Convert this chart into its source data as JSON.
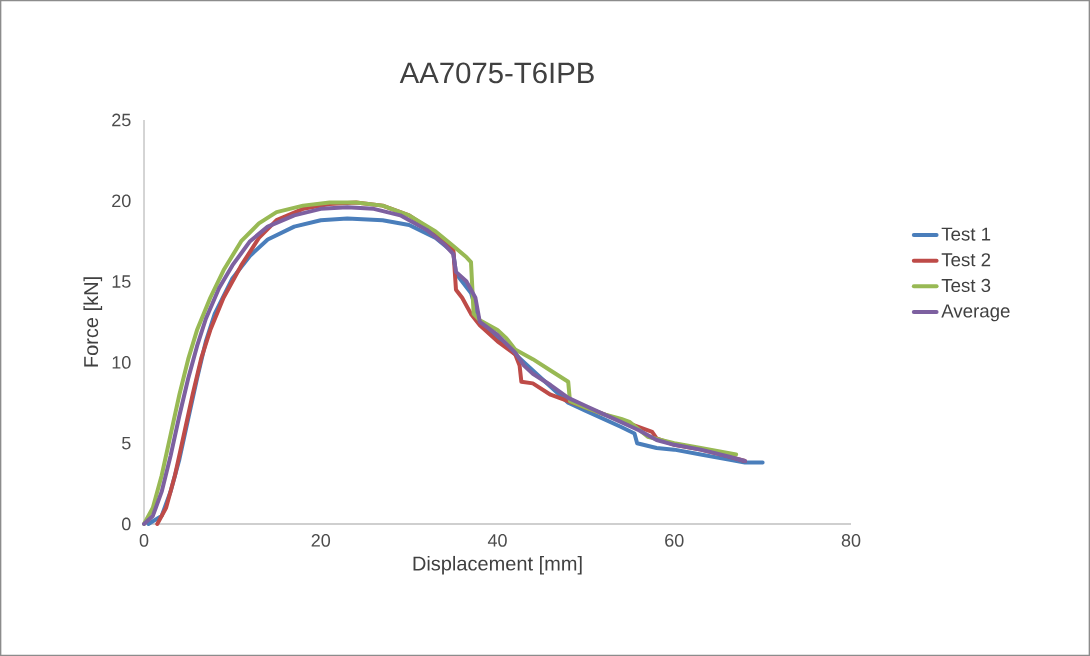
{
  "chart_data": {
    "type": "line",
    "title": "AA7075-T6IPB",
    "xlabel": "Displacement [mm]",
    "ylabel": "Force [kN]",
    "xlim": [
      0,
      80
    ],
    "xticks": [
      0,
      20,
      40,
      60,
      80
    ],
    "ylim": [
      0,
      25
    ],
    "yticks": [
      0,
      5,
      10,
      15,
      20,
      25
    ],
    "grid": false,
    "legend": "right",
    "marker": "none",
    "line_style": "solid",
    "series": [
      {
        "name": "Test 1",
        "color": "#4a7ebb",
        "x": [
          0.5,
          2,
          3,
          4,
          5,
          6,
          7,
          8,
          10,
          12,
          14,
          17,
          20,
          23,
          27,
          30,
          33,
          35,
          35.3,
          36,
          37,
          38,
          40,
          42,
          44,
          46,
          48,
          50,
          52,
          54,
          55.5,
          55.8,
          58,
          60,
          63,
          66,
          68,
          70
        ],
        "values": [
          0,
          0.5,
          2,
          4,
          6.5,
          9,
          11.3,
          13,
          15.2,
          16.6,
          17.6,
          18.4,
          18.8,
          18.9,
          18.8,
          18.5,
          17.7,
          16.8,
          15.5,
          15,
          14.3,
          12.5,
          11.5,
          10.5,
          9.5,
          8.5,
          7.5,
          7,
          6.5,
          6,
          5.6,
          5,
          4.7,
          4.6,
          4.3,
          4,
          3.8,
          3.8
        ]
      },
      {
        "name": "Test 2",
        "color": "#be4b48",
        "x": [
          1.5,
          2.5,
          3.5,
          4.5,
          5.5,
          6.5,
          7.5,
          9,
          11,
          13,
          15,
          18,
          21,
          24,
          27,
          30,
          33,
          35,
          35.3,
          36,
          37,
          38,
          40,
          42,
          42.5,
          42.7,
          44,
          46,
          48,
          50,
          52,
          55,
          57.5,
          58,
          60,
          63,
          66,
          68
        ],
        "values": [
          0,
          1,
          3,
          5.5,
          8,
          10.3,
          12,
          14,
          16,
          17.7,
          18.8,
          19.5,
          19.8,
          19.9,
          19.7,
          19.1,
          18,
          17,
          14.5,
          14,
          13,
          12.3,
          11.3,
          10.5,
          9.8,
          8.8,
          8.7,
          8,
          7.6,
          7.2,
          6.8,
          6.2,
          5.7,
          5.3,
          4.9,
          4.6,
          4.2,
          3.9
        ]
      },
      {
        "name": "Test 3",
        "color": "#98b954",
        "x": [
          0,
          1,
          2,
          3,
          4,
          5,
          6,
          7.5,
          9,
          11,
          13,
          15,
          18,
          21,
          24,
          27,
          30,
          33,
          35,
          36.5,
          37,
          37.3,
          38,
          40,
          41,
          42,
          44,
          46,
          48,
          48.2,
          50,
          52,
          54,
          55,
          57,
          60,
          63,
          67
        ],
        "values": [
          0,
          1,
          3,
          5.5,
          8,
          10.2,
          12,
          14,
          15.7,
          17.5,
          18.6,
          19.3,
          19.7,
          19.9,
          19.9,
          19.7,
          19.1,
          18.1,
          17.2,
          16.5,
          16.2,
          13,
          12.6,
          12,
          11.5,
          10.8,
          10.2,
          9.5,
          8.8,
          7.6,
          7.2,
          6.8,
          6.5,
          6.3,
          5.4,
          5,
          4.7,
          4.3
        ]
      },
      {
        "name": "Average",
        "color": "#7d60a0",
        "x": [
          0,
          1,
          2,
          3,
          4,
          5,
          6,
          7,
          8.5,
          10,
          12,
          14,
          17,
          20,
          23,
          26,
          29,
          32,
          34,
          35,
          35.3,
          36.5,
          37.5,
          38,
          40,
          42,
          43,
          44,
          46,
          48,
          50,
          52,
          54,
          56,
          58,
          60,
          63,
          66,
          68
        ],
        "values": [
          0,
          0.5,
          2,
          4.2,
          6.7,
          9,
          11,
          12.7,
          14.6,
          16,
          17.5,
          18.4,
          19.1,
          19.5,
          19.6,
          19.5,
          19.1,
          18.2,
          17.3,
          16.7,
          15.6,
          15,
          14,
          12.5,
          11.7,
          10.6,
          9.8,
          9.3,
          8.6,
          7.8,
          7.3,
          6.8,
          6.3,
          5.8,
          5.2,
          4.9,
          4.6,
          4.2,
          3.9
        ]
      }
    ]
  }
}
